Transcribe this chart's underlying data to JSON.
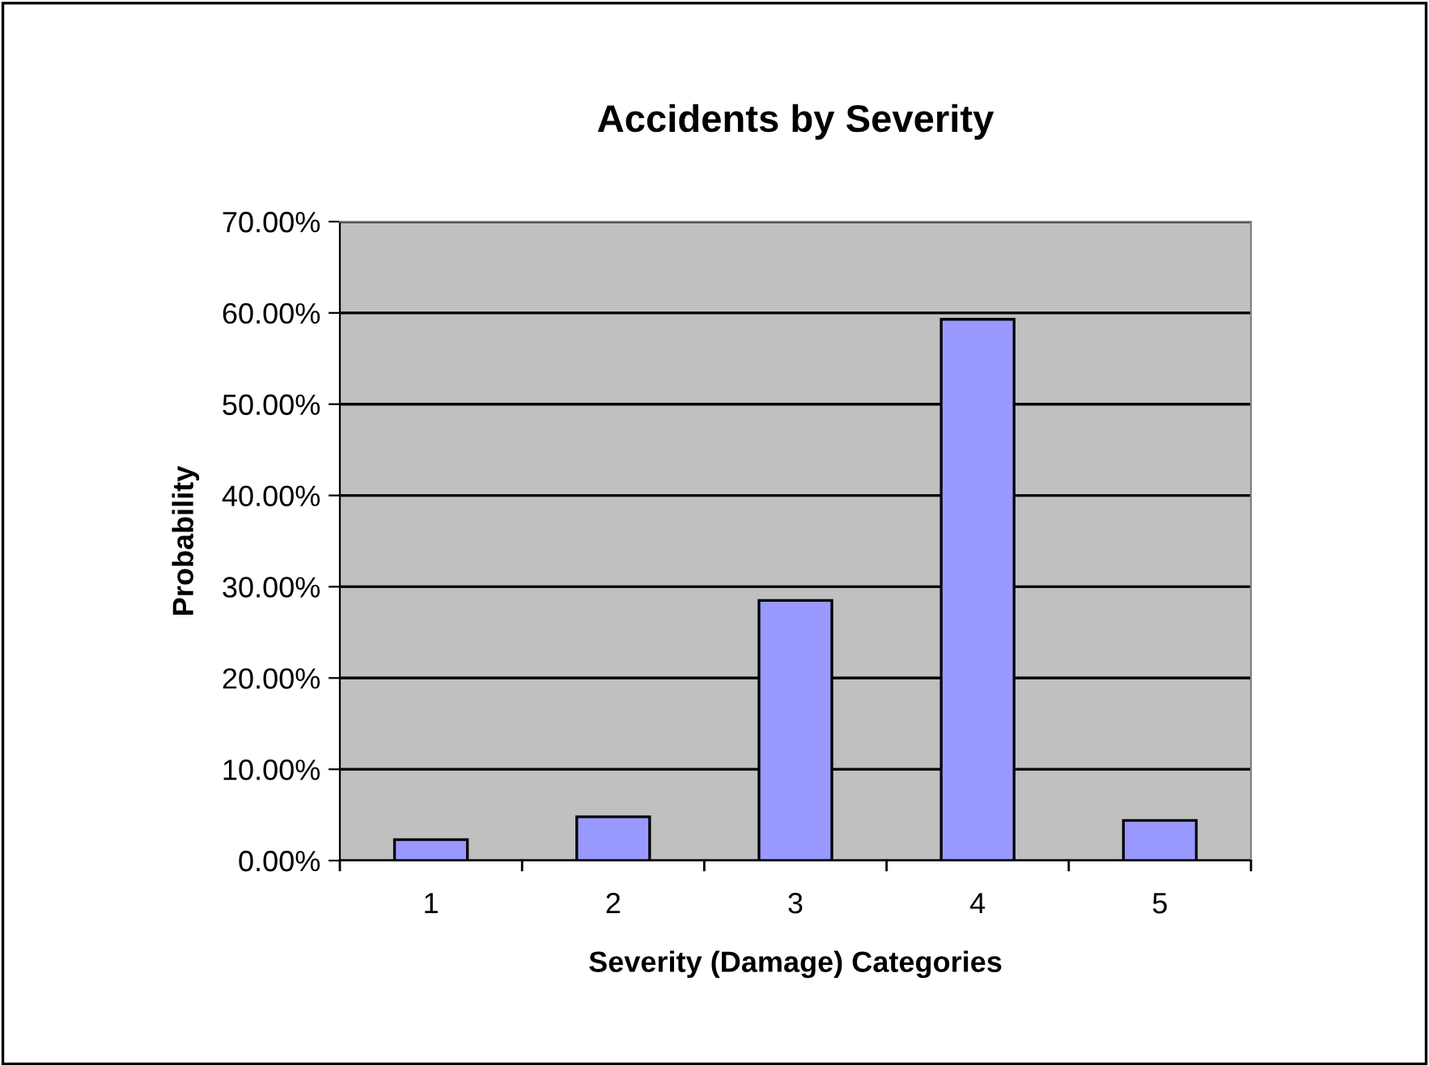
{
  "chart_data": {
    "type": "bar",
    "title": "Accidents by Severity",
    "xlabel": "Severity (Damage) Categories",
    "ylabel": "Probability",
    "categories": [
      "1",
      "2",
      "3",
      "4",
      "5"
    ],
    "values": [
      2.3,
      4.8,
      28.5,
      59.3,
      4.4
    ],
    "color": "#9999ff",
    "ylim": [
      0,
      70
    ],
    "yticks": [
      {
        "value": 0,
        "label": "0.00%"
      },
      {
        "value": 10,
        "label": "10.00%"
      },
      {
        "value": 20,
        "label": "20.00%"
      },
      {
        "value": 30,
        "label": "30.00%"
      },
      {
        "value": 40,
        "label": "40.00%"
      },
      {
        "value": 50,
        "label": "50.00%"
      },
      {
        "value": 60,
        "label": "60.00%"
      },
      {
        "value": 70,
        "label": "70.00%"
      }
    ],
    "grid": "y",
    "legend": false
  }
}
